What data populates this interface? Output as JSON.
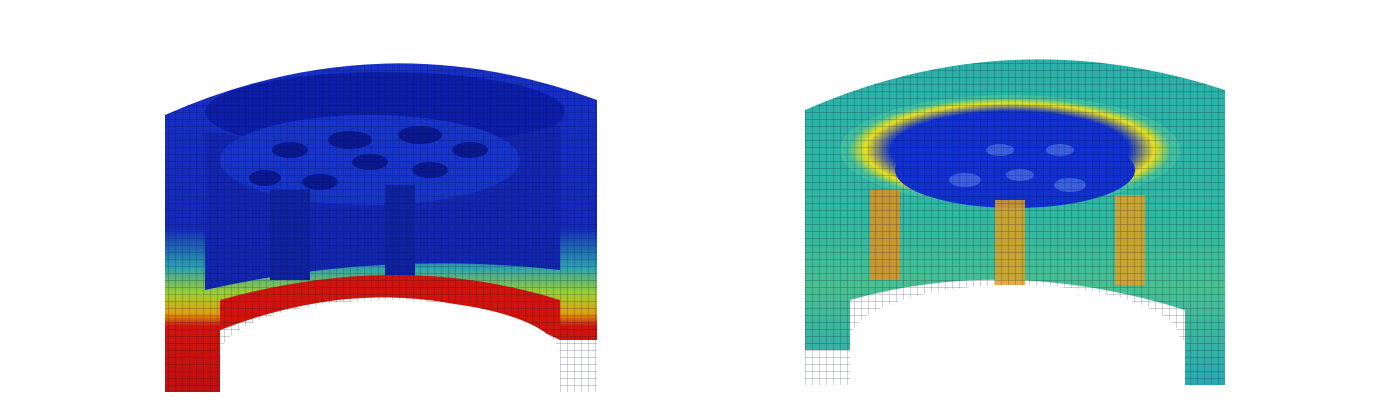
{
  "figure": {
    "panels": [
      {
        "id": "left",
        "description_colors": {
          "low": "#0a1fb5",
          "mid": "#18c0a0",
          "high": "#d0140c"
        }
      },
      {
        "id": "right",
        "description_colors": {
          "low": "#0a2ad0",
          "mid": "#27b8a8",
          "high": "#e8e020"
        }
      }
    ],
    "colors": {
      "background": "#ffffff",
      "mesh": "#0a0a30"
    }
  }
}
